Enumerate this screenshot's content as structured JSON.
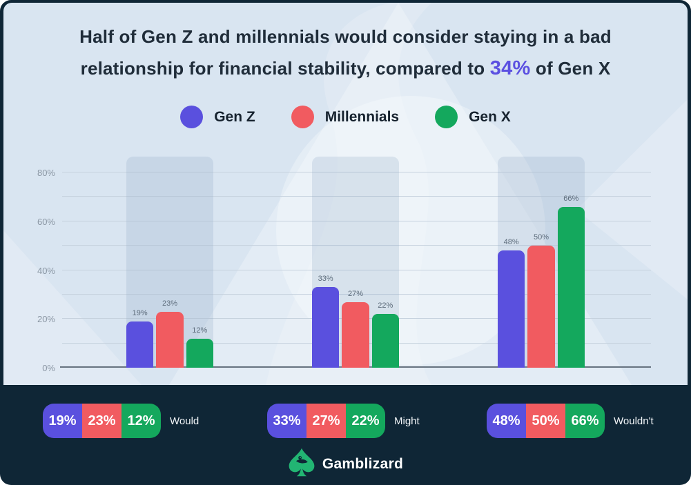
{
  "title": {
    "line1": "Half of Gen Z and millennials would consider staying in a bad",
    "line2_before": "relationship for financial stability, compared to ",
    "line2_highlight": "34%",
    "line2_after": " of Gen X"
  },
  "colors": {
    "accent_purple": "#5a50de",
    "accent_red": "#f15b60",
    "accent_green": "#14a85d",
    "dark_navy": "#0f2636",
    "light_background": "#d9e5f1",
    "logo_green": "#22b573"
  },
  "chart_data": {
    "type": "bar",
    "categories": [
      "Would",
      "Might",
      "Wouldn't"
    ],
    "series": [
      {
        "name": "Gen Z",
        "color": "#5a50de",
        "values": [
          19,
          33,
          48
        ]
      },
      {
        "name": "Millennials",
        "color": "#f15b60",
        "values": [
          23,
          27,
          50
        ]
      },
      {
        "name": "Gen X",
        "color": "#14a85d",
        "values": [
          12,
          22,
          66
        ]
      }
    ],
    "title": "Half of Gen Z and millennials would consider staying in a bad relationship for financial stability, compared to 34% of Gen X",
    "xlabel": "",
    "ylabel": "",
    "ylim": [
      0,
      80
    ],
    "ytick_step": 10,
    "ytick_labeled": [
      0,
      20,
      40,
      60,
      80
    ],
    "grid": true,
    "legend_position": "top",
    "value_label_suffix": "%"
  },
  "footer": {
    "brand": "Gamblizard"
  }
}
